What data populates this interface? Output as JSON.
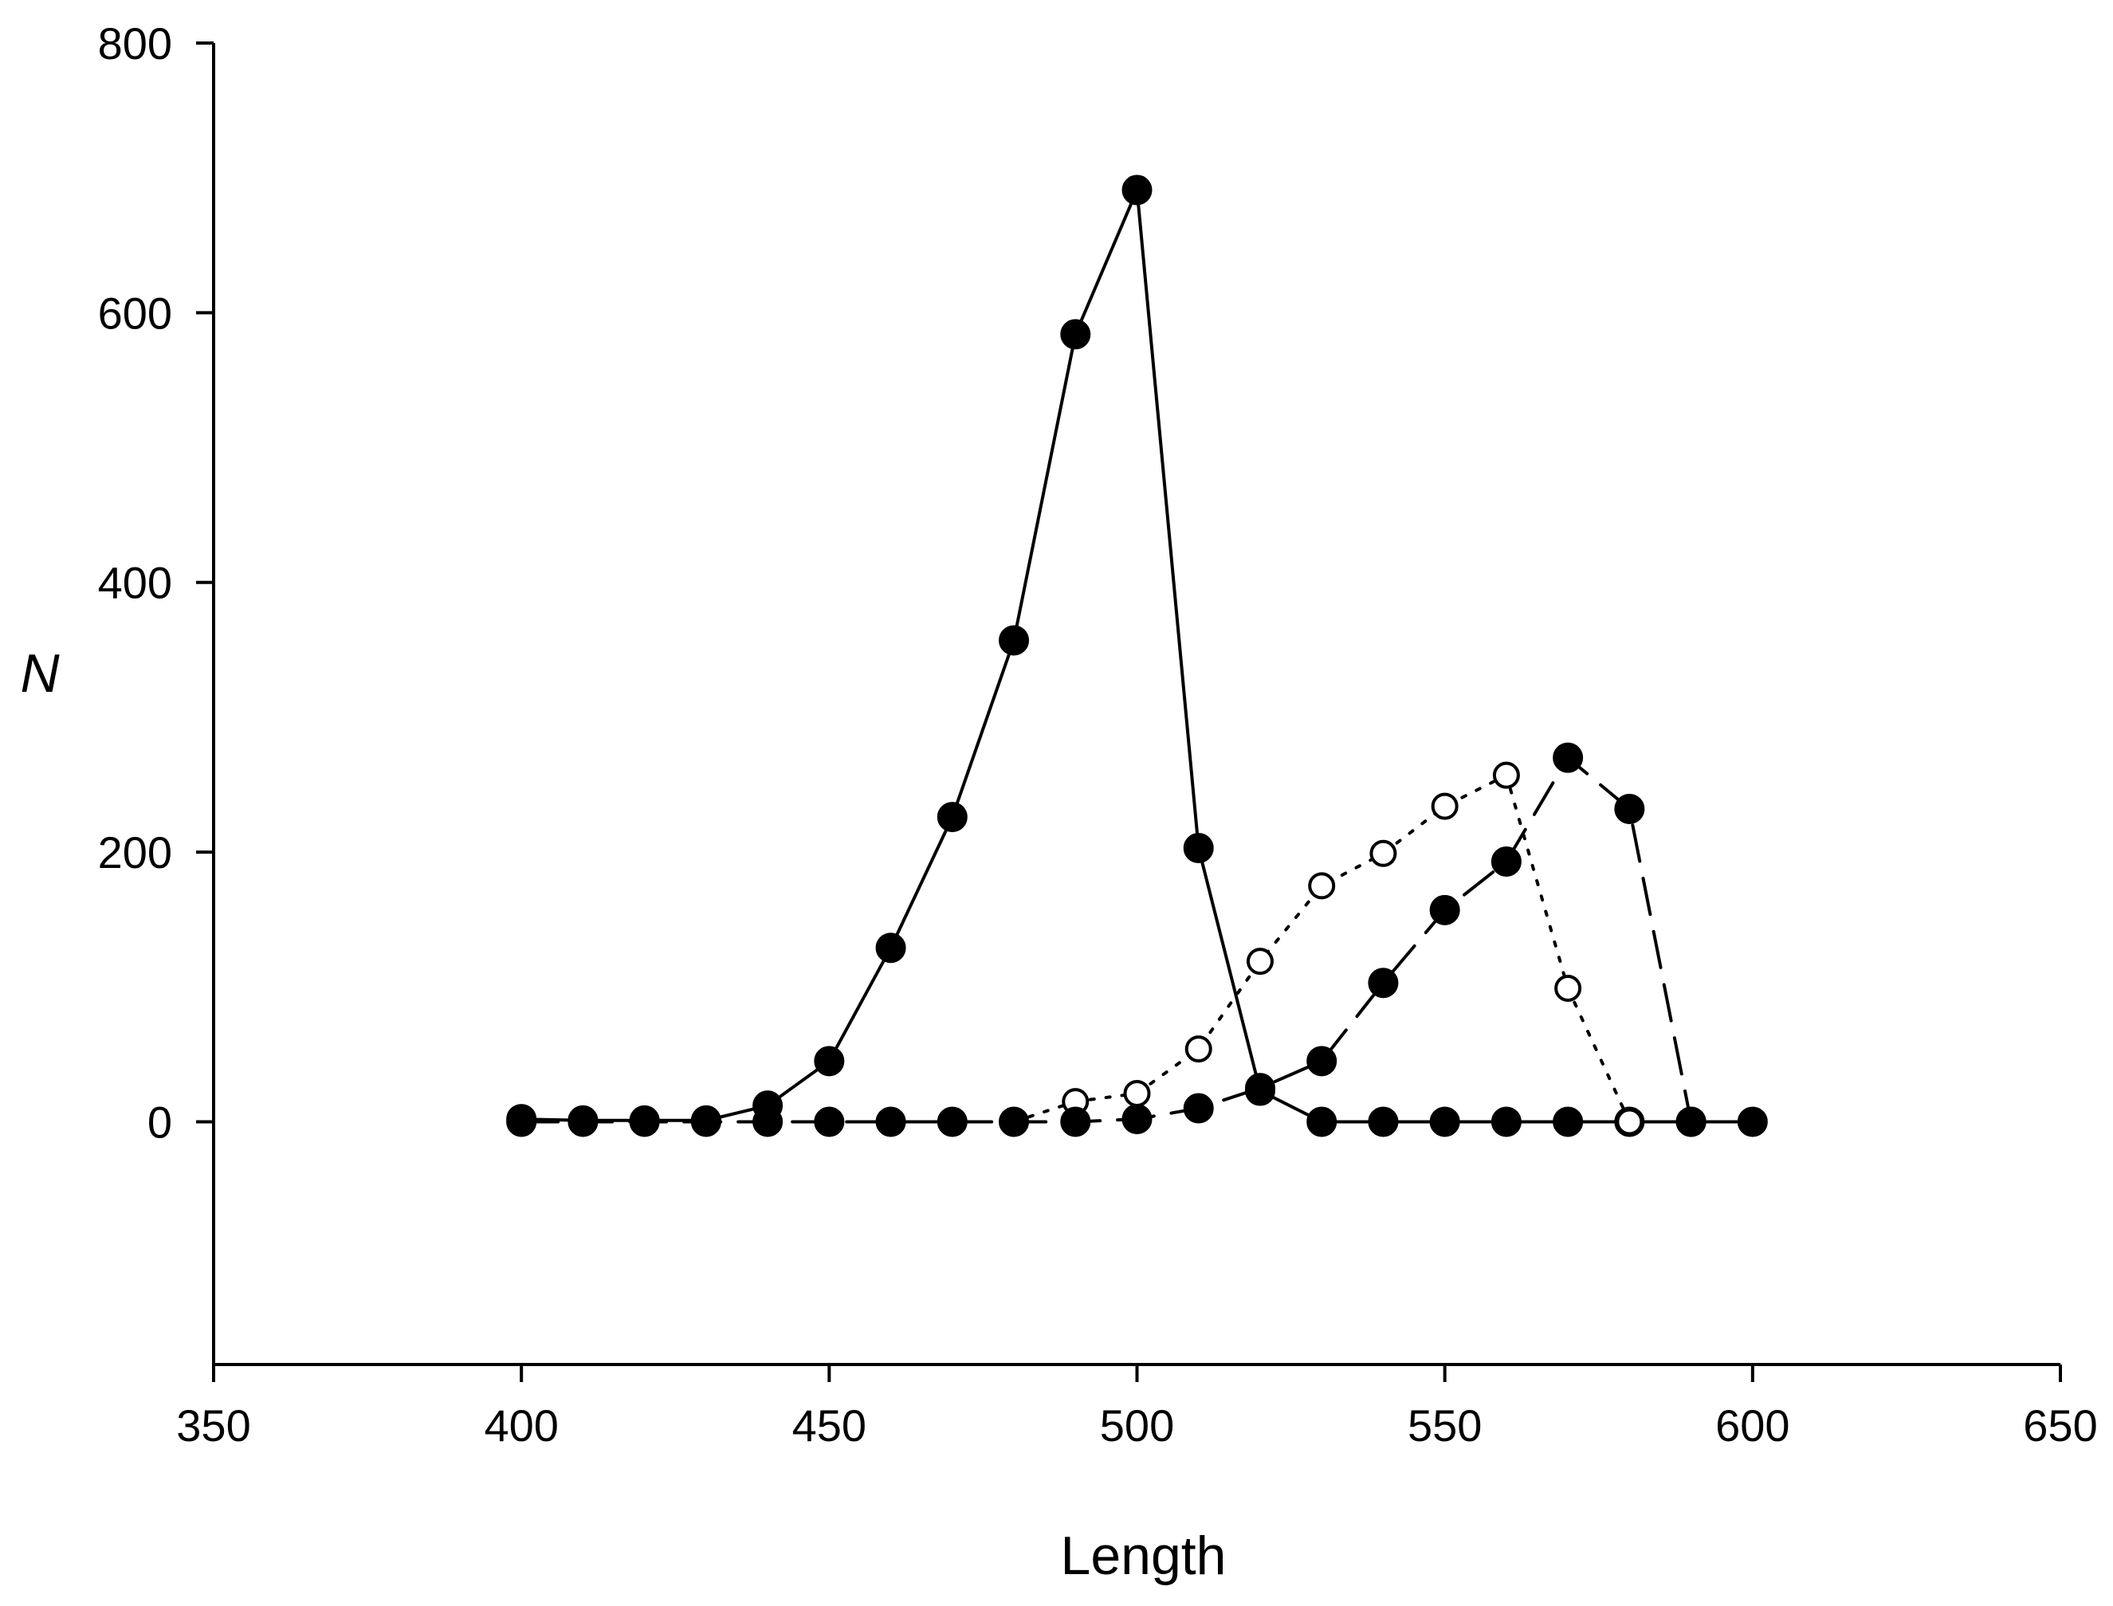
{
  "chart_data": {
    "type": "line",
    "title": "",
    "xlabel": "Length",
    "ylabel": "N",
    "xlim": [
      350,
      650
    ],
    "ylim": [
      -180,
      800
    ],
    "xticks": [
      350,
      400,
      450,
      500,
      550,
      600,
      650
    ],
    "yticks": [
      0,
      200,
      400,
      600,
      800
    ],
    "grid": false,
    "legend": "none",
    "series": [
      {
        "line_style": "solid",
        "marker": "filled-circle",
        "color": "#000000",
        "x": [
          400,
          410,
          420,
          430,
          440,
          450,
          460,
          470,
          480,
          490,
          500,
          510,
          520,
          530,
          540,
          550,
          560,
          570,
          580,
          590,
          600
        ],
        "y": [
          2,
          1,
          1,
          1,
          12,
          45,
          129,
          226,
          357,
          584,
          691,
          203,
          23,
          0,
          0,
          0,
          0,
          0,
          0,
          0,
          0
        ]
      },
      {
        "line_style": "dotted",
        "marker": "open-circle",
        "color": "#000000",
        "x": [
          480,
          490,
          500,
          510,
          520,
          530,
          540,
          550,
          560,
          570,
          580
        ],
        "y": [
          0,
          15,
          21,
          54,
          119,
          175,
          199,
          234,
          257,
          99,
          0
        ]
      },
      {
        "line_style": "dashed",
        "marker": "filled-circle",
        "color": "#000000",
        "x": [
          400,
          410,
          420,
          430,
          440,
          450,
          460,
          470,
          480,
          490,
          500,
          510,
          520,
          530,
          540,
          550,
          560,
          570,
          580,
          590
        ],
        "y": [
          0,
          0,
          0,
          0,
          0,
          0,
          0,
          0,
          0,
          0,
          2,
          10,
          25,
          45,
          103,
          157,
          193,
          270,
          232,
          0
        ]
      }
    ]
  }
}
